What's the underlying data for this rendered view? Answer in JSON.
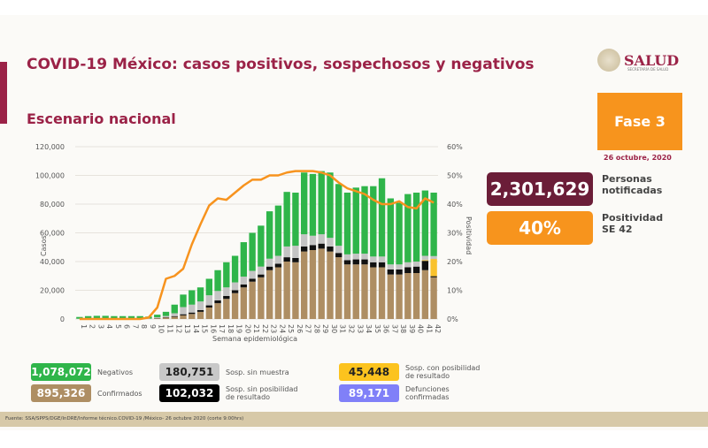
{
  "header": {
    "title": "COVID-19 México: casos positivos, sospechosos y negativos",
    "subtitle": "Escenario nacional",
    "logo_text": "SALUD",
    "logo_sub": "SECRETARÍA DE SALUD"
  },
  "side": {
    "phase": "Fase 3",
    "date": "26 octubre, 2020",
    "notified_value": "2,301,629",
    "notified_label1": "Personas",
    "notified_label2": "notificadas",
    "positivity_value": "40%",
    "positivity_label1": "Positividad",
    "positivity_label2": "SE 42"
  },
  "colors": {
    "maroon": "#6b1d38",
    "orange": "#f7941d",
    "confirmed": "#ae8e63",
    "black": "#111111",
    "gray": "#c4c4c4",
    "yellow": "#f9c22d",
    "green": "#2fb54a",
    "line": "#f7931e",
    "defunciones": "#8080f8"
  },
  "legend": [
    {
      "value": "1,078,072",
      "label": "Negativos",
      "color": "#2fb54a",
      "text": "#fff"
    },
    {
      "value": "180,751",
      "label": "Sosp. sin muestra",
      "color": "#c8c8c8",
      "text": "#222"
    },
    {
      "value": "45,448",
      "label": "Sosp. con posibilidad de resultado",
      "color": "#fcc31e",
      "text": "#222"
    },
    {
      "value": "895,326",
      "label": "Confirmados",
      "color": "#ae8e63",
      "text": "#fff"
    },
    {
      "value": "102,032",
      "label": "Sosp. sin posibilidad de resultado",
      "color": "#000000",
      "text": "#fff"
    },
    {
      "value": "89,171",
      "label": "Defunciones confirmadas",
      "color": "#8080f8",
      "text": "#fff"
    }
  ],
  "footer": "Fuente: SSA/SPPS/DGE/InDRE/Informe técnico.COVID-19 /México- 26 octubre 2020 (corte 9:00hrs)",
  "chart_data": {
    "type": "bar",
    "xlabel": "Semana epidemiológica",
    "ylabel": "Casos",
    "y2label": "Positividad",
    "ylim": [
      0,
      120000
    ],
    "y2lim": [
      0,
      60
    ],
    "yticks": [
      "0",
      "20,000",
      "40,000",
      "60,000",
      "80,000",
      "100,000",
      "120,000"
    ],
    "y2ticks": [
      "0%",
      "10%",
      "20%",
      "30%",
      "40%",
      "50%",
      "60%"
    ],
    "categories": [
      "1",
      "2",
      "3",
      "4",
      "5",
      "6",
      "7",
      "8",
      "9",
      "10",
      "11",
      "12",
      "13",
      "14",
      "15",
      "16",
      "17",
      "18",
      "19",
      "20",
      "21",
      "22",
      "23",
      "24",
      "25",
      "26",
      "27",
      "28",
      "29",
      "30",
      "31",
      "32",
      "33",
      "34",
      "35",
      "36",
      "37",
      "38",
      "39",
      "40",
      "41",
      "42"
    ],
    "series": [
      {
        "name": "Confirmados",
        "values": [
          0,
          0,
          0,
          0,
          0,
          0,
          0,
          0,
          0,
          500,
          1000,
          1500,
          2500,
          3500,
          5000,
          8000,
          11000,
          14000,
          18000,
          22000,
          26000,
          29000,
          34000,
          36000,
          40000,
          39500,
          47000,
          48000,
          49000,
          47000,
          43000,
          38000,
          38000,
          38000,
          36000,
          36000,
          31000,
          31000,
          32000,
          32000,
          34000,
          29000
        ]
      },
      {
        "name": "Sosp. sin posibilidad de resultado",
        "values": [
          0,
          0,
          0,
          0,
          0,
          0,
          0,
          0,
          0,
          200,
          300,
          500,
          800,
          1000,
          1200,
          1500,
          2000,
          2000,
          2000,
          2000,
          2000,
          2000,
          2500,
          2500,
          3000,
          3000,
          3500,
          3500,
          3500,
          3500,
          3000,
          3000,
          3500,
          3500,
          3500,
          3500,
          3500,
          3500,
          4000,
          4500,
          6500,
          800
        ]
      },
      {
        "name": "Sosp. con posibilidad de resultado",
        "values": [
          0,
          0,
          0,
          0,
          0,
          0,
          0,
          0,
          0,
          0,
          0,
          0,
          0,
          0,
          0,
          0,
          0,
          0,
          0,
          0,
          0,
          0,
          0,
          0,
          0,
          0,
          0,
          0,
          0,
          0,
          0,
          0,
          0,
          0,
          0,
          0,
          0,
          0,
          0,
          0,
          500,
          12000
        ]
      },
      {
        "name": "Sosp. sin muestra",
        "values": [
          200,
          300,
          300,
          300,
          300,
          300,
          300,
          300,
          300,
          500,
          800,
          2000,
          5000,
          5500,
          6000,
          7000,
          6500,
          6000,
          5500,
          5500,
          5500,
          5500,
          5500,
          5500,
          7500,
          8500,
          8500,
          6500,
          6500,
          6000,
          5000,
          4000,
          4000,
          4000,
          4000,
          4000,
          3500,
          3500,
          3500,
          3500,
          3000,
          2000
        ]
      },
      {
        "name": "Negativos",
        "values": [
          1200,
          1700,
          1900,
          1900,
          1700,
          1700,
          1700,
          1700,
          1400,
          1800,
          2900,
          6000,
          8700,
          10000,
          9800,
          11500,
          14500,
          17500,
          18500,
          24000,
          26500,
          28500,
          33000,
          35000,
          38000,
          37000,
          43000,
          43000,
          44000,
          45500,
          43000,
          43000,
          46000,
          47000,
          49000,
          54500,
          46000,
          43000,
          47500,
          48000,
          45500,
          44200
        ]
      }
    ],
    "positivity": [
      0,
      0,
      0,
      0,
      0,
      0,
      0,
      0,
      0.5,
      4,
      14,
      15,
      17.5,
      26,
      33,
      39.5,
      42,
      41.5,
      44,
      46.5,
      48.5,
      48.5,
      50,
      50,
      51,
      51.5,
      51.5,
      51.5,
      51,
      50,
      47.5,
      45.5,
      44.5,
      43.5,
      41.5,
      40,
      40,
      41,
      39,
      38.5,
      42,
      40.5
    ]
  }
}
